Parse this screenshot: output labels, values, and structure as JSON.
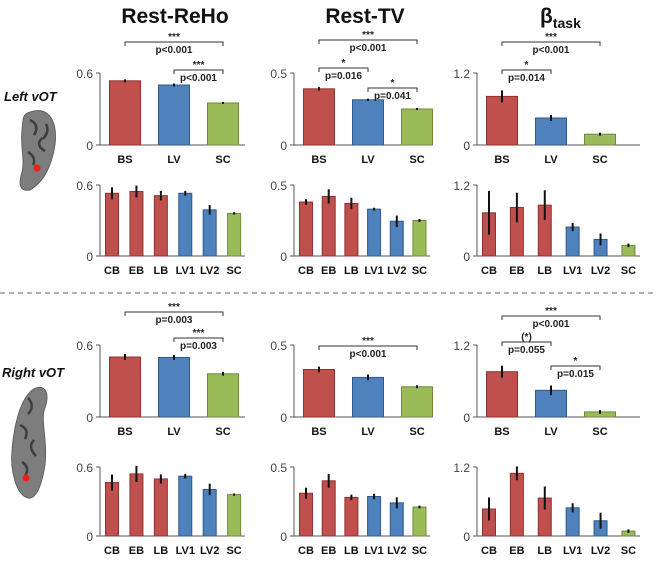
{
  "figure": {
    "column_titles": [
      {
        "main": "Rest-ReHo",
        "sub": ""
      },
      {
        "main": "Rest-TV",
        "sub": ""
      },
      {
        "main": "β",
        "sub": "task"
      }
    ],
    "regions": [
      {
        "label": "Left vOT"
      },
      {
        "label": "Right vOT"
      }
    ]
  },
  "colors": {
    "BS": "#c0504d",
    "LV": "#4f81bd",
    "SC": "#9bbb59"
  },
  "chart_data": [
    {
      "type": "bar",
      "region": "Left vOT",
      "measure": "Rest-ReHo",
      "level": "group",
      "categories": [
        "BS",
        "LV",
        "SC"
      ],
      "groups": [
        "BS",
        "LV",
        "SC"
      ],
      "values": [
        0.535,
        0.5,
        0.35
      ],
      "errors": [
        0.012,
        0.012,
        0.008
      ],
      "ylim": [
        0,
        0.6
      ],
      "yticks": [
        "0",
        "0.6"
      ],
      "comparisons": [
        {
          "from": 0,
          "to": 2,
          "stars": "***",
          "p": "p<0.001"
        },
        {
          "from": 1,
          "to": 2,
          "stars": "***",
          "p": "p<0.001"
        }
      ]
    },
    {
      "type": "bar",
      "region": "Left vOT",
      "measure": "Rest-TV",
      "level": "group",
      "categories": [
        "BS",
        "LV",
        "SC"
      ],
      "groups": [
        "BS",
        "LV",
        "SC"
      ],
      "values": [
        0.39,
        0.314,
        0.25
      ],
      "errors": [
        0.012,
        0.008,
        0.007
      ],
      "ylim": [
        0,
        0.5
      ],
      "yticks": [
        "0",
        "0.5"
      ],
      "comparisons": [
        {
          "from": 0,
          "to": 2,
          "stars": "***",
          "p": "p<0.001"
        },
        {
          "from": 0,
          "to": 1,
          "stars": "*",
          "p": "p=0.016"
        },
        {
          "from": 1,
          "to": 2,
          "stars": "*",
          "p": "p=0.041"
        }
      ]
    },
    {
      "type": "bar",
      "region": "Left vOT",
      "measure": "β task",
      "level": "group",
      "categories": [
        "BS",
        "LV",
        "SC"
      ],
      "groups": [
        "BS",
        "LV",
        "SC"
      ],
      "values": [
        0.81,
        0.45,
        0.18
      ],
      "errors": [
        0.1,
        0.05,
        0.025
      ],
      "ylim": [
        0,
        1.2
      ],
      "yticks": [
        "0",
        "1.2"
      ],
      "comparisons": [
        {
          "from": 0,
          "to": 2,
          "stars": "***",
          "p": "p<0.001"
        },
        {
          "from": 0,
          "to": 1,
          "stars": "*",
          "p": "p=0.014"
        }
      ]
    },
    {
      "type": "bar",
      "region": "Left vOT",
      "measure": "Rest-ReHo",
      "level": "subgroup",
      "categories": [
        "CB",
        "EB",
        "LB",
        "LV1",
        "LV2",
        "SC"
      ],
      "groups": [
        "BS",
        "BS",
        "BS",
        "LV",
        "LV",
        "SC"
      ],
      "values": [
        0.53,
        0.545,
        0.51,
        0.53,
        0.39,
        0.36
      ],
      "errors": [
        0.05,
        0.05,
        0.04,
        0.02,
        0.04,
        0.01
      ],
      "ylim": [
        0,
        0.6
      ],
      "yticks": [
        "0",
        "0.6"
      ],
      "comparisons": []
    },
    {
      "type": "bar",
      "region": "Left vOT",
      "measure": "Rest-TV",
      "level": "subgroup",
      "categories": [
        "CB",
        "EB",
        "LB",
        "LV1",
        "LV2",
        "SC"
      ],
      "groups": [
        "BS",
        "BS",
        "BS",
        "LV",
        "LV",
        "SC"
      ],
      "values": [
        0.38,
        0.42,
        0.37,
        0.33,
        0.245,
        0.25
      ],
      "errors": [
        0.02,
        0.05,
        0.04,
        0.01,
        0.04,
        0.01
      ],
      "ylim": [
        0,
        0.5
      ],
      "yticks": [
        "0",
        "0.5"
      ],
      "comparisons": []
    },
    {
      "type": "bar",
      "region": "Left vOT",
      "measure": "β task",
      "level": "subgroup",
      "categories": [
        "CB",
        "EB",
        "LB",
        "LV1",
        "LV2",
        "SC"
      ],
      "groups": [
        "BS",
        "BS",
        "BS",
        "LV",
        "LV",
        "SC"
      ],
      "values": [
        0.73,
        0.82,
        0.86,
        0.49,
        0.28,
        0.18
      ],
      "errors": [
        0.37,
        0.25,
        0.25,
        0.07,
        0.1,
        0.03
      ],
      "ylim": [
        0,
        1.2
      ],
      "yticks": [
        "0",
        "1.2"
      ],
      "comparisons": []
    },
    {
      "type": "bar",
      "region": "Right vOT",
      "measure": "Rest-ReHo",
      "level": "group",
      "categories": [
        "BS",
        "LV",
        "SC"
      ],
      "groups": [
        "BS",
        "LV",
        "SC"
      ],
      "values": [
        0.5,
        0.496,
        0.36
      ],
      "errors": [
        0.025,
        0.02,
        0.015
      ],
      "ylim": [
        0,
        0.6
      ],
      "yticks": [
        "0",
        "0.6"
      ],
      "comparisons": [
        {
          "from": 0,
          "to": 2,
          "stars": "***",
          "p": "p=0.003"
        },
        {
          "from": 1,
          "to": 2,
          "stars": "***",
          "p": "p=0.003"
        }
      ]
    },
    {
      "type": "bar",
      "region": "Right vOT",
      "measure": "Rest-TV",
      "level": "group",
      "categories": [
        "BS",
        "LV",
        "SC"
      ],
      "groups": [
        "BS",
        "LV",
        "SC"
      ],
      "values": [
        0.33,
        0.275,
        0.21
      ],
      "errors": [
        0.02,
        0.02,
        0.01
      ],
      "ylim": [
        0,
        0.5
      ],
      "yticks": [
        "0",
        "0.5"
      ],
      "comparisons": [
        {
          "from": 0,
          "to": 2,
          "stars": "***",
          "p": "p<0.001"
        }
      ]
    },
    {
      "type": "bar",
      "region": "Right vOT",
      "measure": "β task",
      "level": "group",
      "categories": [
        "BS",
        "LV",
        "SC"
      ],
      "groups": [
        "BS",
        "LV",
        "SC"
      ],
      "values": [
        0.755,
        0.445,
        0.085
      ],
      "errors": [
        0.1,
        0.08,
        0.03
      ],
      "ylim": [
        0,
        1.2
      ],
      "yticks": [
        "0",
        "1.2"
      ],
      "comparisons": [
        {
          "from": 0,
          "to": 2,
          "stars": "***",
          "p": "p<0.001"
        },
        {
          "from": 0,
          "to": 1,
          "stars": "(*)",
          "p": "p=0.055"
        },
        {
          "from": 1,
          "to": 2,
          "stars": "*",
          "p": "p=0.015"
        }
      ]
    },
    {
      "type": "bar",
      "region": "Right vOT",
      "measure": "Rest-ReHo",
      "level": "subgroup",
      "categories": [
        "CB",
        "EB",
        "LB",
        "LV1",
        "LV2",
        "SC"
      ],
      "groups": [
        "BS",
        "BS",
        "BS",
        "LV",
        "LV",
        "SC"
      ],
      "values": [
        0.465,
        0.54,
        0.496,
        0.52,
        0.405,
        0.36
      ],
      "errors": [
        0.07,
        0.07,
        0.04,
        0.02,
        0.05,
        0.01
      ],
      "ylim": [
        0,
        0.6
      ],
      "yticks": [
        "0",
        "0.6"
      ],
      "comparisons": []
    },
    {
      "type": "bar",
      "region": "Right vOT",
      "measure": "Rest-TV",
      "level": "subgroup",
      "categories": [
        "CB",
        "EB",
        "LB",
        "LV1",
        "LV2",
        "SC"
      ],
      "groups": [
        "BS",
        "BS",
        "BS",
        "LV",
        "LV",
        "SC"
      ],
      "values": [
        0.31,
        0.4,
        0.28,
        0.286,
        0.24,
        0.21
      ],
      "errors": [
        0.04,
        0.05,
        0.02,
        0.02,
        0.04,
        0.01
      ],
      "ylim": [
        0,
        0.5
      ],
      "yticks": [
        "0",
        "0.5"
      ],
      "comparisons": []
    },
    {
      "type": "bar",
      "region": "Right vOT",
      "measure": "β task",
      "level": "subgroup",
      "categories": [
        "CB",
        "EB",
        "LB",
        "LV1",
        "LV2",
        "SC"
      ],
      "groups": [
        "BS",
        "BS",
        "BS",
        "LV",
        "LV",
        "SC"
      ],
      "values": [
        0.47,
        1.09,
        0.66,
        0.49,
        0.265,
        0.085
      ],
      "errors": [
        0.2,
        0.12,
        0.2,
        0.08,
        0.14,
        0.03
      ],
      "ylim": [
        0,
        1.2
      ],
      "yticks": [
        "0",
        "1.2"
      ],
      "comparisons": []
    }
  ]
}
